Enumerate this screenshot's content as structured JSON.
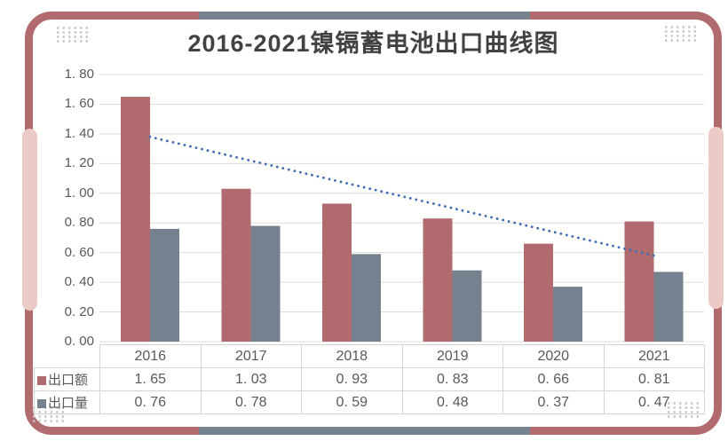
{
  "title": "2016-2021镍镉蓄电池出口曲线图",
  "decor": {
    "frame_color": "#b16a6e",
    "accent_slate_color": "#75818f",
    "pill_pink_color": "#eccac5",
    "dot_color": "#c9c9c9"
  },
  "chart_data": {
    "type": "bar",
    "title": "2016-2021镍镉蓄电池出口曲线图",
    "categories": [
      "2016",
      "2017",
      "2018",
      "2019",
      "2020",
      "2021"
    ],
    "series": [
      {
        "key": "export-value",
        "name": "出口额",
        "color": "#b16a6e",
        "values": [
          1.65,
          1.03,
          0.93,
          0.83,
          0.66,
          0.81
        ]
      },
      {
        "key": "export-volume",
        "name": "出口量",
        "color": "#75818f",
        "values": [
          0.76,
          0.78,
          0.59,
          0.48,
          0.37,
          0.47
        ]
      }
    ],
    "trendline": {
      "series": "出口额",
      "style": "dotted",
      "color": "#3f6cb5",
      "from_value": 1.38,
      "to_value": 0.58
    },
    "ylim": [
      0,
      1.8
    ],
    "ytick_step": 0.2,
    "ytick_labels": [
      "0. 00",
      "0. 20",
      "0. 40",
      "0. 60",
      "0. 80",
      "1. 00",
      "1. 20",
      "1. 40",
      "1. 60",
      "1. 80"
    ],
    "grid": true,
    "legend_position": "table-left-column"
  },
  "table": {
    "years": [
      "2016",
      "2017",
      "2018",
      "2019",
      "2020",
      "2021"
    ],
    "rows": [
      {
        "key": "export-value",
        "label": "出口额",
        "swatch_color": "#b16a6e",
        "values_display": [
          "1. 65",
          "1. 03",
          "0. 93",
          "0. 83",
          "0. 66",
          "0. 81"
        ]
      },
      {
        "key": "export-volume",
        "label": "出口量",
        "swatch_color": "#75818f",
        "values_display": [
          "0. 76",
          "0. 78",
          "0. 59",
          "0. 48",
          "0. 37",
          "0. 47"
        ]
      }
    ]
  }
}
